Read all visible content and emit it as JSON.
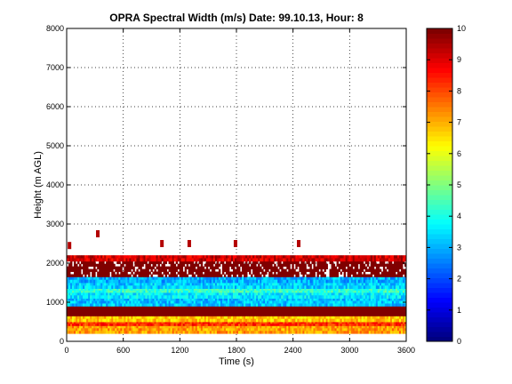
{
  "chart_data": {
    "type": "heatmap",
    "title": "OPRA Spectral Width (m/s)  Date: 99.10.13, Hour: 8",
    "xlabel": "Time (s)",
    "ylabel": "Height (m AGL)",
    "xlim": [
      0,
      3600
    ],
    "ylim": [
      0,
      8000
    ],
    "x_ticks": [
      0,
      600,
      1200,
      1800,
      2400,
      3000,
      3600
    ],
    "y_ticks": [
      0,
      1000,
      2000,
      3000,
      4000,
      5000,
      6000,
      7000,
      8000
    ],
    "grid": true,
    "colormap": "jet",
    "colorbar": {
      "range": [
        0,
        10
      ],
      "ticks": [
        0,
        1,
        2,
        3,
        4,
        5,
        6,
        7,
        8,
        9,
        10
      ]
    },
    "height_bands": [
      {
        "from": 200,
        "to": 400,
        "value": 7.2,
        "description": "yellow-orange"
      },
      {
        "from": 400,
        "to": 500,
        "value": 8.3,
        "description": "orange"
      },
      {
        "from": 500,
        "to": 650,
        "value": 6.8,
        "description": "yellow"
      },
      {
        "from": 650,
        "to": 900,
        "value": 10.0,
        "description": "dark red"
      },
      {
        "from": 900,
        "to": 1100,
        "value": 3.2,
        "description": "cyan"
      },
      {
        "from": 1100,
        "to": 1250,
        "value": 3.6,
        "description": "cyan"
      },
      {
        "from": 1250,
        "to": 1350,
        "value": 4.2,
        "description": "light cyan-green"
      },
      {
        "from": 1350,
        "to": 1500,
        "value": 3.3,
        "description": "cyan"
      },
      {
        "from": 1500,
        "to": 1650,
        "value": 3.0,
        "description": "cyan"
      },
      {
        "from": 1650,
        "to": 2050,
        "value": 10.0,
        "description": "dark red, patchy"
      },
      {
        "from": 2050,
        "to": 2200,
        "value": 9.2,
        "description": "red"
      }
    ],
    "scattered_echoes": [
      {
        "x": 30,
        "y": 2450,
        "value": 9.5
      },
      {
        "x": 330,
        "y": 2750,
        "value": 9.5
      },
      {
        "x": 1010,
        "y": 2500,
        "value": 9.5
      },
      {
        "x": 1300,
        "y": 2500,
        "value": 9.5
      },
      {
        "x": 1790,
        "y": 2500,
        "value": 9.5
      },
      {
        "x": 2460,
        "y": 2500,
        "value": 9.5
      }
    ]
  }
}
